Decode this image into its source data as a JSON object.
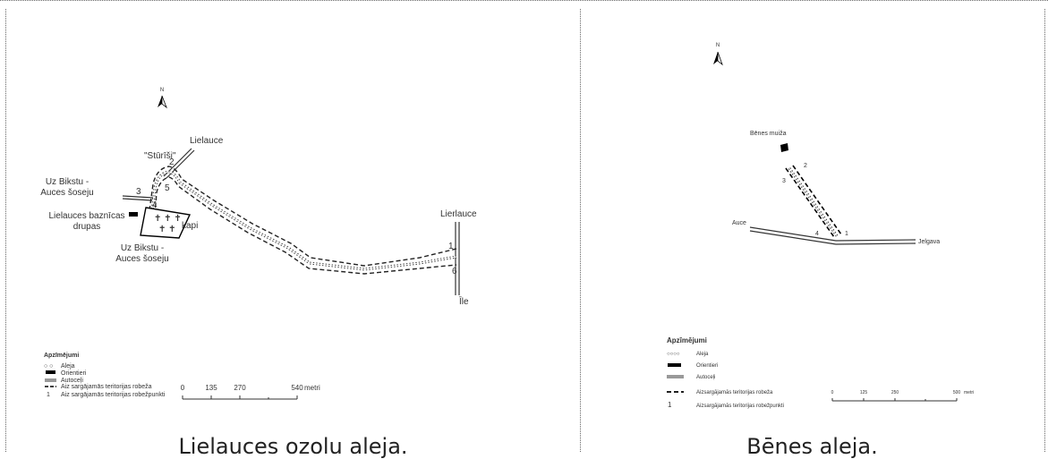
{
  "left_map": {
    "caption": "Lielauces ozolu aleja.",
    "places": {
      "lielauce": "Lielauce",
      "sturisi": "\"Stūrīši\"",
      "uz_bikstu_1_a": "Uz Bikstu -",
      "uz_bikstu_1_b": "Auces šoseju",
      "church_a": "Lielauces baznīcas",
      "church_b": "drupas",
      "uz_bikstu_2_a": "Uz Bikstu -",
      "uz_bikstu_2_b": "Auces šoseju",
      "kapi": "kapi",
      "lierlauce": "Lierlauce",
      "ile": "Īle"
    },
    "points": [
      "1",
      "2",
      "3",
      "4",
      "5",
      "6"
    ],
    "north": "N",
    "legend": {
      "title": "Apzīmējumi",
      "items": [
        {
          "symbol": "○ ○",
          "label": "Aleja"
        },
        {
          "symbol": "block",
          "label": "Orientieri"
        },
        {
          "symbol": "road",
          "label": "Autoceļi"
        },
        {
          "symbol": "dash",
          "label": "Aiz sargājamās teritorijas robeža"
        },
        {
          "symbol": "1",
          "label": "Aiz sargājamās teritorijas robežpunkti"
        }
      ]
    },
    "scale": {
      "ticks": [
        "0",
        "135",
        "270",
        "540"
      ],
      "unit": "metri"
    }
  },
  "right_map": {
    "caption": "Bēnes aleja.",
    "places": {
      "muiza": "Bēnes muiža",
      "auce": "Auce",
      "jelgava": "Jelgava"
    },
    "points": [
      "1",
      "2",
      "3",
      "4"
    ],
    "north": "N",
    "legend": {
      "title": "Apzīmējumi",
      "items": [
        {
          "symbol": "○○○○",
          "label": "Aleja"
        },
        {
          "symbol": "block",
          "label": "Orientieri"
        },
        {
          "symbol": "road",
          "label": "Autoceļi"
        },
        {
          "symbol": "dash",
          "label": "Aizsargājamās teritorijas robeža"
        },
        {
          "symbol": "1",
          "label": "Aizsargājamās teritorijas robežpunkti"
        }
      ]
    },
    "scale": {
      "ticks": [
        "0",
        "125",
        "250",
        "500"
      ],
      "unit": "metri"
    }
  }
}
